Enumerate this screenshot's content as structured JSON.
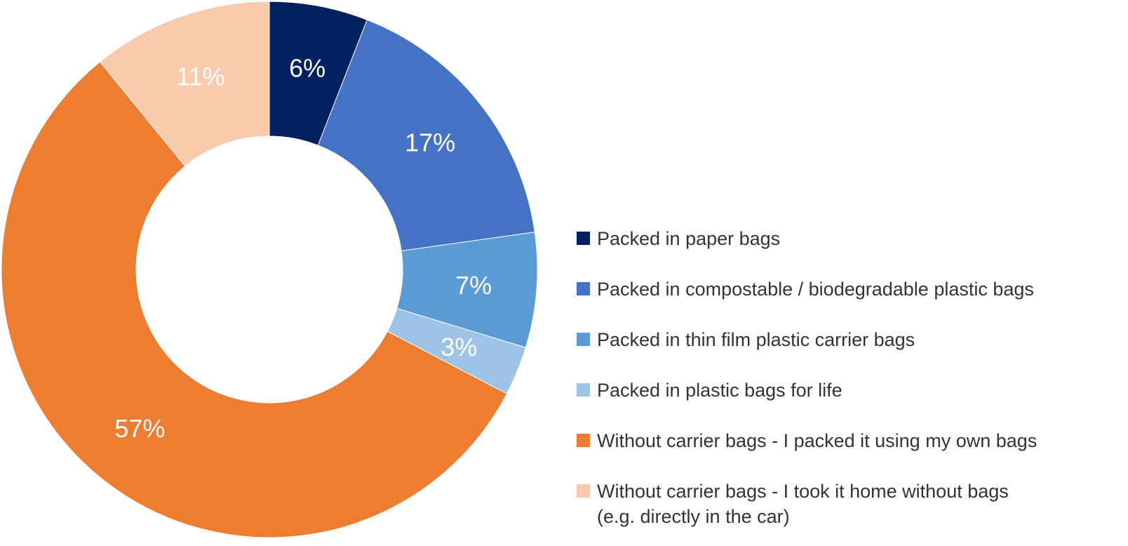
{
  "chart_data": {
    "type": "pie",
    "donut": true,
    "title": "",
    "legend_position": "right",
    "slices": [
      {
        "label": "Packed in paper bags",
        "value": 6,
        "display": "6%",
        "color": "#002060"
      },
      {
        "label": "Packed in compostable / biodegradable plastic bags",
        "value": 17,
        "display": "17%",
        "color": "#4472C4"
      },
      {
        "label": "Packed in thin film plastic carrier bags",
        "value": 7,
        "display": "7%",
        "color": "#5B9BD5"
      },
      {
        "label": "Packed in plastic bags for life",
        "value": 3,
        "display": "3%",
        "color": "#9DC3E6"
      },
      {
        "label": "Without carrier bags - I packed it using my own bags",
        "value": 57,
        "display": "57%",
        "color": "#ED7D31"
      },
      {
        "label": "Without carrier bags - I took it home without bags\n(e.g. directly in the car)",
        "value": 11,
        "display": "11%",
        "color": "#F8CBAD"
      }
    ]
  }
}
